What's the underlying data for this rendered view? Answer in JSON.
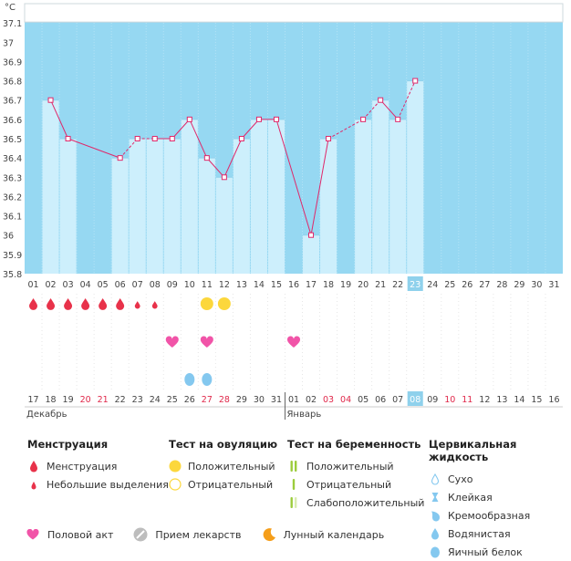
{
  "chart_data": {
    "type": "bar",
    "unit_label": "°C",
    "ylim": [
      35.8,
      37.2
    ],
    "y_ticks": [
      "35.8",
      "35.9",
      "36",
      "36.1",
      "36.2",
      "36.3",
      "36.4",
      "36.5",
      "36.6",
      "36.7",
      "36.8",
      "36.9",
      "37",
      "37.1"
    ],
    "cycle_days": [
      "01",
      "02",
      "03",
      "04",
      "05",
      "06",
      "07",
      "08",
      "09",
      "10",
      "11",
      "12",
      "13",
      "14",
      "15",
      "16",
      "17",
      "18",
      "19",
      "20",
      "21",
      "22",
      "23",
      "24",
      "25",
      "26",
      "27",
      "28",
      "29",
      "30",
      "31"
    ],
    "temperatures": [
      null,
      36.7,
      36.5,
      null,
      null,
      36.4,
      36.5,
      36.5,
      36.5,
      36.6,
      36.4,
      36.3,
      36.5,
      36.6,
      36.6,
      null,
      36.0,
      36.5,
      null,
      36.6,
      36.7,
      36.6,
      36.8,
      null,
      null,
      null,
      null,
      null,
      null,
      null,
      null
    ],
    "connections": [
      "solid",
      "solid",
      "dashed",
      "dashed",
      "solid",
      "solid",
      "solid",
      "solid",
      "solid",
      "solid",
      "solid",
      "solid",
      "solid",
      "dashed",
      "dashed",
      "solid",
      "dashed",
      "dashed",
      "solid",
      "solid",
      "solid"
    ],
    "current_day_index": 22,
    "calendar_dates": [
      "17",
      "18",
      "19",
      "20",
      "21",
      "22",
      "23",
      "24",
      "25",
      "26",
      "27",
      "28",
      "29",
      "30",
      "31",
      "01",
      "02",
      "03",
      "04",
      "05",
      "06",
      "07",
      "08",
      "09",
      "10",
      "11",
      "12",
      "13",
      "14",
      "15",
      "16"
    ],
    "weekend_indices": [
      3,
      4,
      10,
      11,
      17,
      18,
      24,
      25
    ],
    "months": [
      {
        "label": "Декабрь",
        "start_index": 0
      },
      {
        "label": "Январь",
        "start_index": 15
      }
    ],
    "menstruation": [
      "heavy",
      "heavy",
      "heavy",
      "heavy",
      "heavy",
      "heavy",
      "light",
      "light",
      null,
      null,
      null,
      null,
      null,
      null,
      null,
      null,
      null,
      null,
      null,
      null,
      null,
      null,
      null,
      null,
      null,
      null,
      null,
      null,
      null,
      null,
      null
    ],
    "ovulation_test": [
      null,
      null,
      null,
      null,
      null,
      null,
      null,
      null,
      null,
      null,
      "positive",
      "positive",
      null,
      null,
      null,
      null,
      null,
      null,
      null,
      null,
      null,
      null,
      null,
      null,
      null,
      null,
      null,
      null,
      null,
      null,
      null
    ],
    "intercourse_indices": [
      8,
      10,
      15
    ],
    "cervical_indices": [
      9,
      10
    ],
    "colors": {
      "sky": "#96d8f2",
      "bar": "#cdeffc",
      "bar_border": "#8fd1ec",
      "line": "#e0286a",
      "menstruation": "#e8324a",
      "heart": "#f154a8",
      "ovulation": "#fcd73c",
      "cervical": "#84c8ef",
      "highlight": "#8fd1ec",
      "weekend": "#e0284a"
    }
  },
  "legend": {
    "menstruation": {
      "title": "Менструация",
      "items": [
        "Менструация",
        "Небольшие выделения"
      ]
    },
    "ovulation": {
      "title": "Тест на овуляцию",
      "items": [
        "Положительный",
        "Отрицательный"
      ]
    },
    "pregnancy": {
      "title": "Тест на беременность",
      "items": [
        "Положительный",
        "Отрицательный",
        "Слабоположительный"
      ]
    },
    "cervical": {
      "title": "Цервикальная жидкость",
      "items": [
        "Сухо",
        "Клейкая",
        "Кремообразная",
        "Водянистая",
        "Яичный белок"
      ]
    }
  },
  "bottom": [
    "Половой акт",
    "Прием лекарств",
    "Лунный календарь"
  ]
}
